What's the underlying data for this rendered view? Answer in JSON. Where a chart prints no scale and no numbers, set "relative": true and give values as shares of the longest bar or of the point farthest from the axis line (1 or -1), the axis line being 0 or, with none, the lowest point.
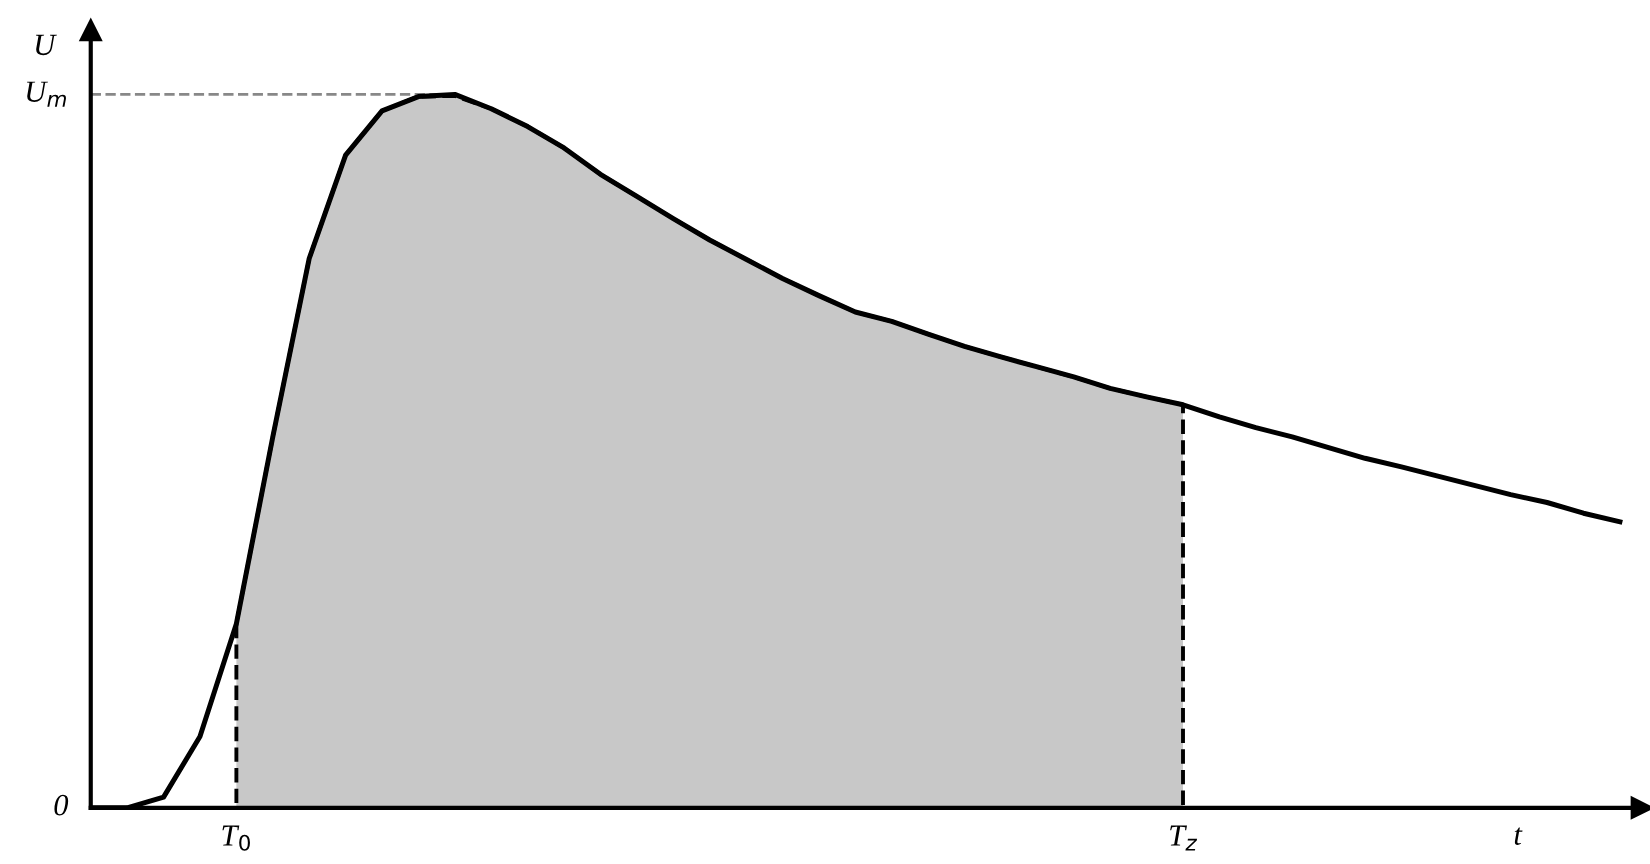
{
  "chart_data": {
    "type": "line",
    "relative": true,
    "xlabel": "t",
    "ylabel": "U",
    "categories": [
      null,
      null,
      null,
      null,
      "T$_{0}$",
      null,
      null,
      null,
      null,
      null,
      null,
      null,
      null,
      null,
      null,
      null,
      null,
      null,
      null,
      null,
      null,
      null,
      null,
      null,
      null,
      null,
      null,
      null,
      null,
      null,
      "T$_{z}$",
      null,
      null,
      null,
      null,
      null,
      null,
      null,
      null,
      null,
      null,
      null,
      null
    ],
    "annotations": [
      "0",
      "U$_{m}$"
    ],
    "grid": false,
    "legend": false,
    "marker": "none",
    "series": [
      {
        "type": "area",
        "color": "#c8c8c8",
        "line_style": "dashed",
        "values": [
          null,
          null,
          null,
          null,
          0.258,
          0.52,
          0.77,
          0.915,
          0.977,
          0.997,
          0.998,
          0.98,
          0.955,
          0.925,
          0.888,
          0.857,
          0.826,
          0.796,
          0.769,
          0.742,
          0.718,
          0.695,
          0.682,
          0.664,
          0.647,
          0.632,
          0.618,
          0.604,
          0.588,
          0.576,
          0.565,
          null,
          null,
          null,
          null,
          null,
          null,
          null,
          null,
          null,
          null,
          null,
          null
        ]
      },
      {
        "color": "#000000",
        "line_style": "solid",
        "values": [
          0,
          0,
          0.015,
          0.1,
          0.258,
          0.52,
          0.77,
          0.915,
          0.977,
          0.997,
          1.0,
          0.98,
          0.955,
          0.925,
          0.888,
          0.857,
          0.826,
          0.796,
          0.769,
          0.742,
          0.718,
          0.695,
          0.682,
          0.664,
          0.647,
          0.632,
          0.618,
          0.604,
          0.588,
          0.576,
          0.565,
          0.548,
          0.533,
          0.52,
          0.505,
          0.49,
          0.478,
          0.465,
          0.452,
          0.439,
          0.428,
          0.413,
          0.401
        ]
      }
    ],
    "ref_lines": [
      {
        "axis": "y",
        "value": 1,
        "label": null,
        "color": "#888888",
        "line_style": "dashed"
      }
    ]
  }
}
